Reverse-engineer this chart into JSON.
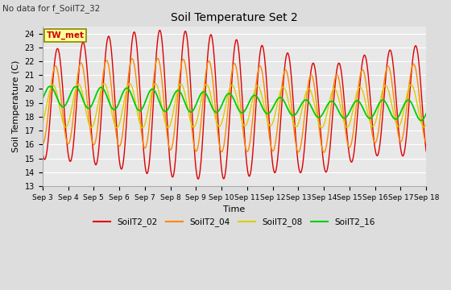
{
  "title": "Soil Temperature Set 2",
  "xlabel": "Time",
  "ylabel": "Soil Temperature (C)",
  "no_data_label": "No data for f_SoilT2_32",
  "tw_met_label": "TW_met",
  "ylim": [
    13.0,
    24.5
  ],
  "ytick_min": 13.0,
  "ytick_max": 24.0,
  "ytick_step": 1.0,
  "background_color": "#dddddd",
  "plot_bg_color": "#e8e8e8",
  "series_colors": {
    "SoilT2_02": "#dd0000",
    "SoilT2_04": "#ff8800",
    "SoilT2_08": "#ddcc00",
    "SoilT2_16": "#00cc00"
  },
  "legend_entries": [
    "SoilT2_02",
    "SoilT2_04",
    "SoilT2_08",
    "SoilT2_16"
  ],
  "tw_met_box_color": "#ffff99",
  "tw_met_border_color": "#888800",
  "line_width": 1.0
}
